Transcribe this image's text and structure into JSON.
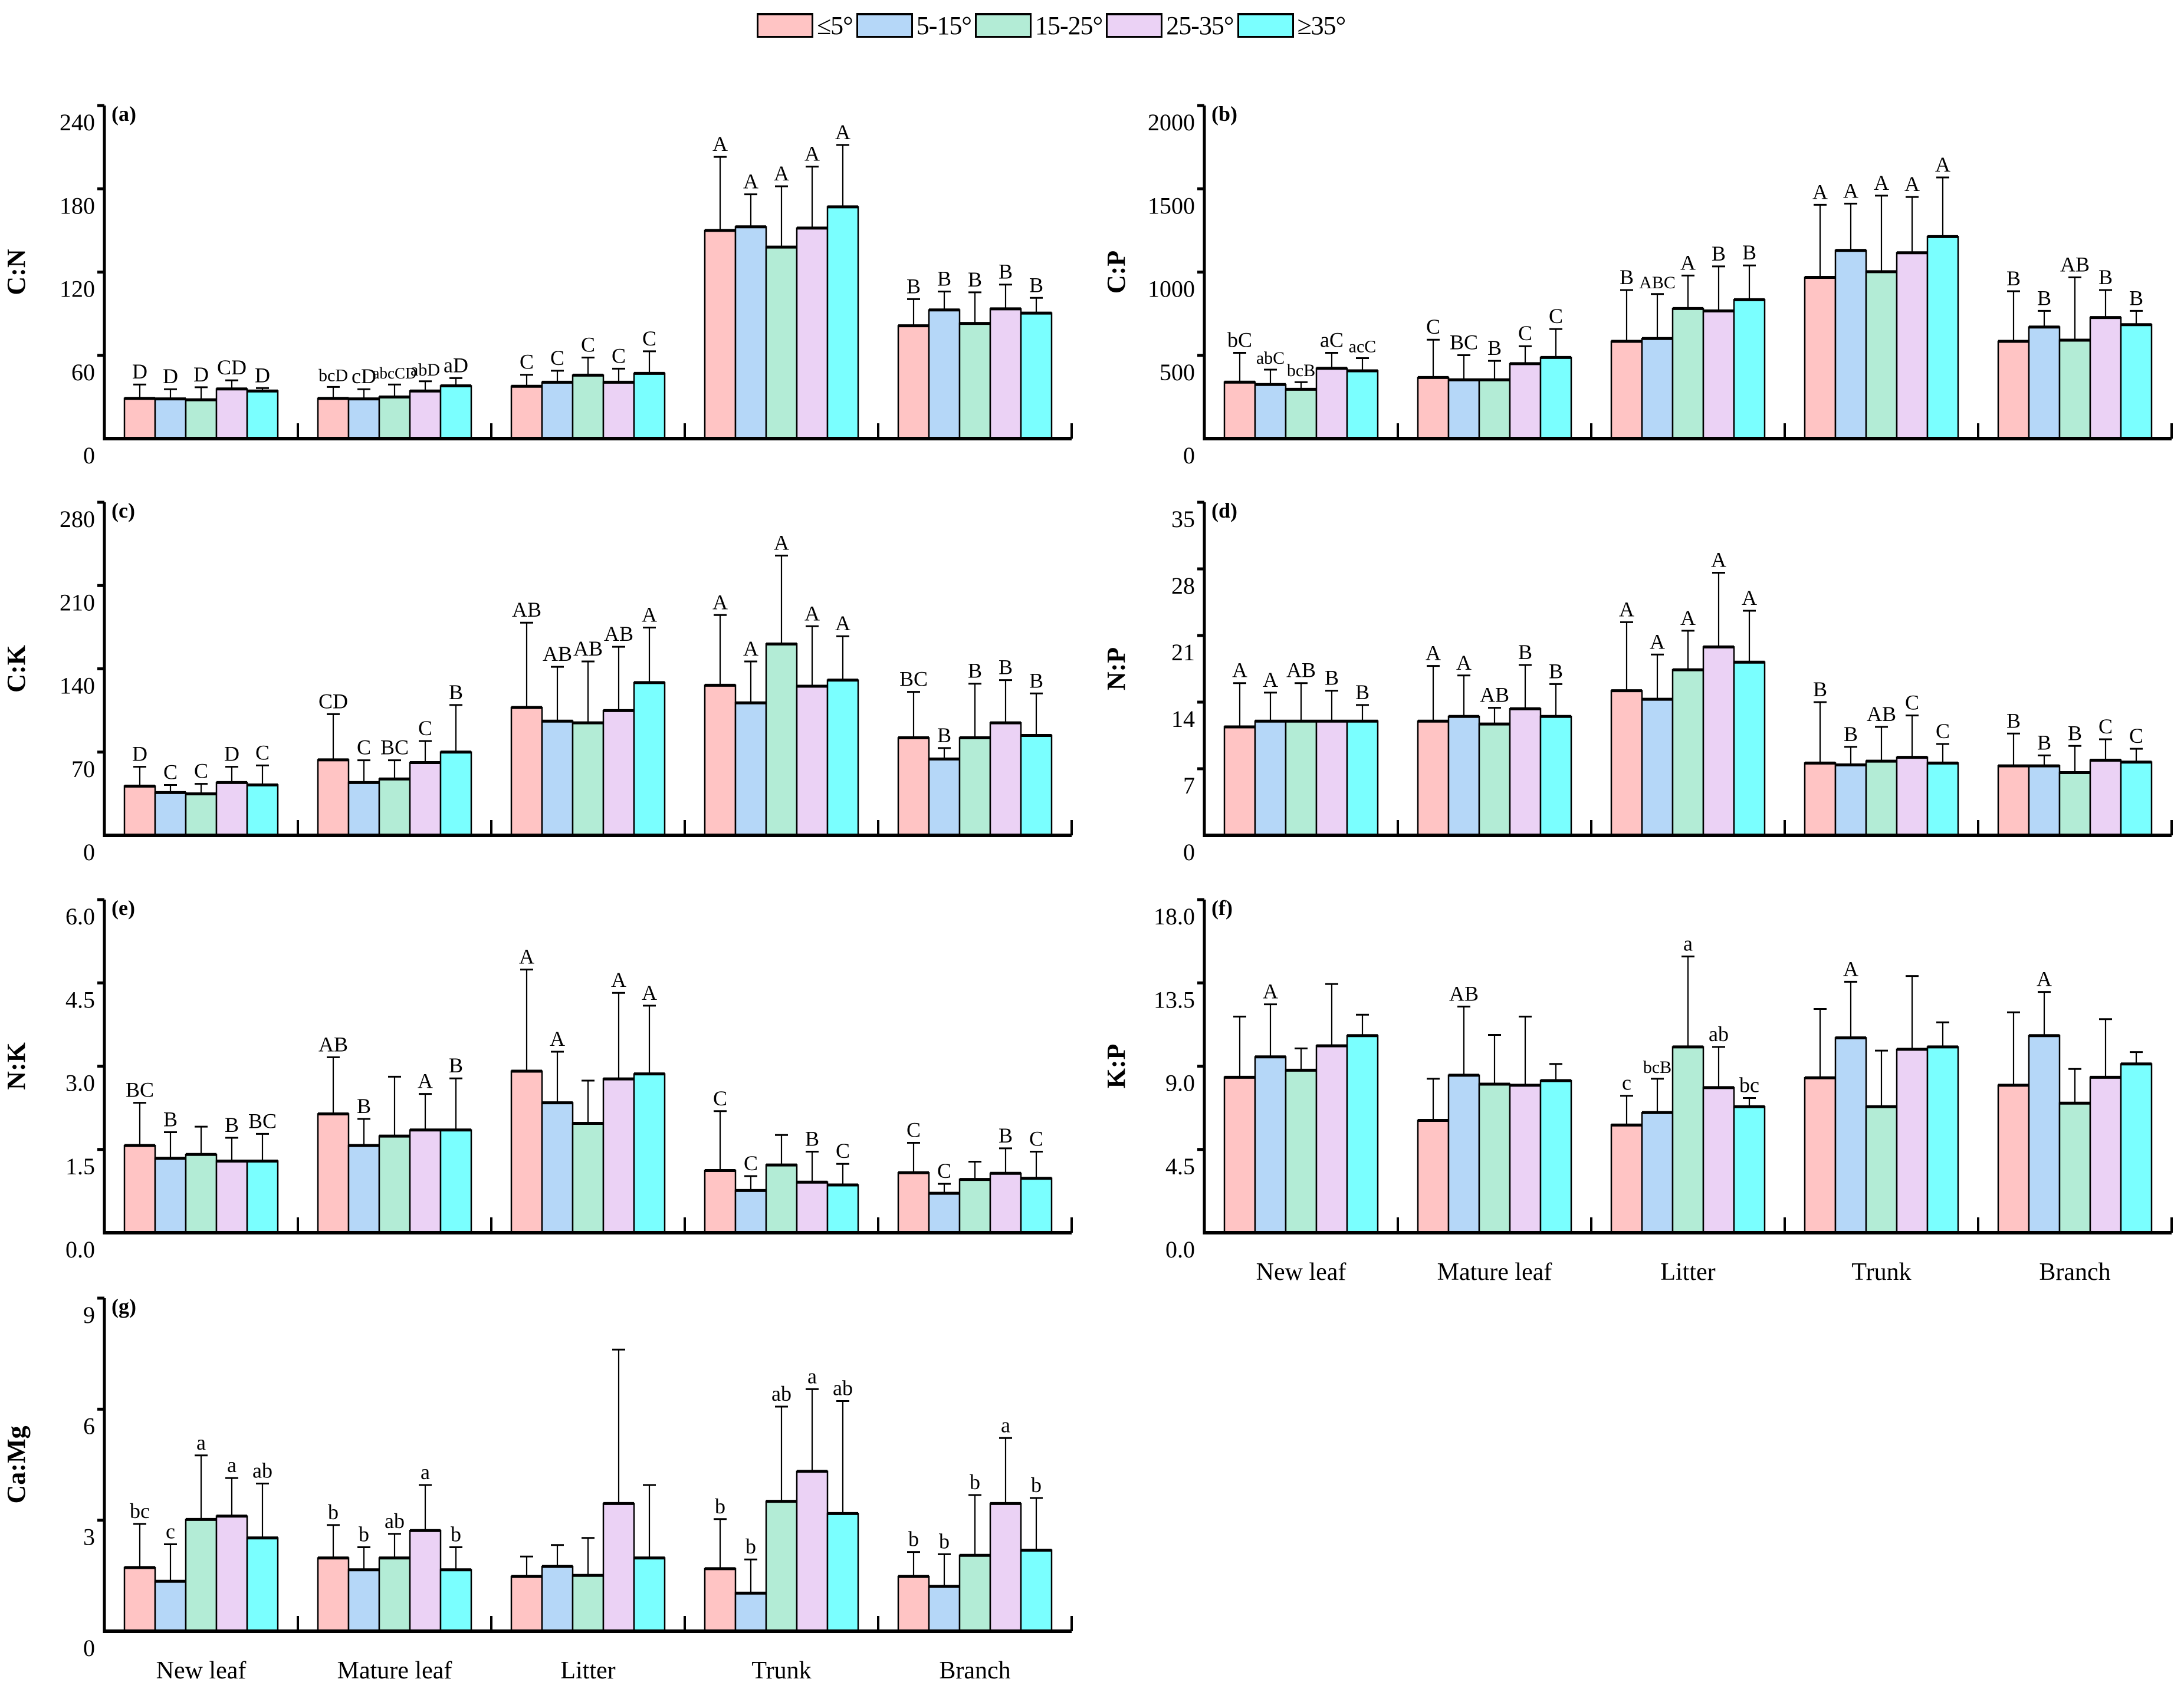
{
  "legend": [
    {
      "label": "≤5°",
      "color": "#FFC4C4"
    },
    {
      "label": "5-15°",
      "color": "#B5D7F8"
    },
    {
      "label": "15-25°",
      "color": "#B3ECD6"
    },
    {
      "label": "25-35°",
      "color": "#EBD2F5"
    },
    {
      "label": "≥35°",
      "color": "#7AFFFF"
    }
  ],
  "categories": [
    "New leaf",
    "Mature leaf",
    "Litter",
    "Trunk",
    "Branch"
  ],
  "chart_data": [
    {
      "type": "bar",
      "panel": "(a)",
      "ylabel": "C:N",
      "ylim": [
        0,
        240
      ],
      "yticks": [
        "0",
        "60",
        "120",
        "180",
        "240"
      ],
      "series": [
        {
          "name": "≤5°",
          "values": [
            29,
            29,
            37.7,
            150,
            81.3
          ],
          "error_upper": [
            39,
            37.2,
            46,
            203,
            100.5
          ],
          "letters": [
            "D",
            "bcD",
            "C",
            "A",
            "B"
          ]
        },
        {
          "name": "5-15°",
          "values": [
            28.6,
            28.6,
            40.6,
            152.6,
            92.7
          ],
          "error_upper": [
            35.6,
            35.6,
            48.9,
            176,
            106
          ],
          "letters": [
            "D",
            "cD",
            "C",
            "A",
            "B"
          ]
        },
        {
          "name": "15-25°",
          "values": [
            28,
            30,
            45.7,
            138,
            83
          ],
          "error_upper": [
            37,
            39,
            58.4,
            181.8,
            105.4
          ],
          "letters": [
            "D",
            "abcCD",
            "C",
            "A",
            "B"
          ]
        },
        {
          "name": "25-35°",
          "values": [
            35.8,
            34.3,
            40.6,
            151.7,
            93.5
          ],
          "error_upper": [
            42,
            41.3,
            50.4,
            196,
            111
          ],
          "letters": [
            "CD",
            "abD",
            "C",
            "A",
            "B"
          ]
        },
        {
          "name": "≥35°",
          "values": [
            34.3,
            38,
            47,
            167,
            90.4
          ],
          "error_upper": [
            36.4,
            43.6,
            62.9,
            211.6,
            101.4
          ],
          "letters": [
            "D",
            "aD",
            "C",
            "A",
            "B"
          ]
        }
      ]
    },
    {
      "type": "bar",
      "panel": "(b)",
      "ylabel": "C:P",
      "ylim": [
        0,
        2000
      ],
      "yticks": [
        "0",
        "500",
        "1000",
        "1500",
        "2000"
      ],
      "series": [
        {
          "name": "≤5°",
          "values": [
            339,
            367,
            584,
            968,
            584
          ],
          "error_upper": [
            515,
            594,
            892,
            1404,
            885
          ],
          "letters": [
            "bC",
            "C",
            "B",
            "A",
            "B"
          ]
        },
        {
          "name": "5-15°",
          "values": [
            325,
            353,
            601,
            1130,
            670
          ],
          "error_upper": [
            414,
            501,
            868,
            1411,
            767
          ],
          "letters": [
            "abC",
            "BC",
            "ABC",
            "A",
            "B"
          ]
        },
        {
          "name": "15-25°",
          "values": [
            296,
            353,
            781,
            1002,
            591
          ],
          "error_upper": [
            339,
            467,
            979,
            1459,
            968
          ],
          "letters": [
            "bcB",
            "B",
            "A",
            "A",
            "AB"
          ]
        },
        {
          "name": "25-35°",
          "values": [
            422,
            450,
            767,
            1116,
            727
          ],
          "error_upper": [
            515,
            555,
            1034,
            1451,
            892
          ],
          "letters": [
            "aC",
            "C",
            "B",
            "A",
            "B"
          ]
        },
        {
          "name": "≥35°",
          "values": [
            407,
            487,
            834,
            1213,
            684
          ],
          "error_upper": [
            483,
            658,
            1040,
            1568,
            767
          ],
          "letters": [
            "acC",
            "C",
            "B",
            "A",
            "B"
          ]
        }
      ]
    },
    {
      "type": "bar",
      "panel": "(c)",
      "ylabel": "C:K",
      "ylim": [
        0,
        280
      ],
      "yticks": [
        "0",
        "70",
        "140",
        "210",
        "280"
      ],
      "series": [
        {
          "name": "≤5°",
          "values": [
            41.4,
            63.5,
            107.5,
            126.2,
            82
          ],
          "error_upper": [
            57.7,
            101.9,
            178.8,
            185.2,
            120.6
          ],
          "letters": [
            "D",
            "CD",
            "AB",
            "A",
            "BC"
          ]
        },
        {
          "name": "5-15°",
          "values": [
            36,
            44.4,
            96,
            111.4,
            64.2
          ],
          "error_upper": [
            42.4,
            63.1,
            141.7,
            146.2,
            73.4
          ],
          "letters": [
            "C",
            "C",
            "AB",
            "A",
            "B"
          ]
        },
        {
          "name": "15-25°",
          "values": [
            34.9,
            47.4,
            94.6,
            160.9,
            82
          ],
          "error_upper": [
            43.3,
            63.1,
            146.2,
            235.2,
            127.5
          ],
          "letters": [
            "C",
            "BC",
            "AB",
            "A",
            "B"
          ]
        },
        {
          "name": "25-35°",
          "values": [
            44.4,
            61.2,
            104.9,
            125.4,
            94.6
          ],
          "error_upper": [
            57.7,
            79.3,
            158.5,
            175.8,
            130.5
          ],
          "letters": [
            "D",
            "C",
            "AB",
            "A",
            "B"
          ]
        },
        {
          "name": "≥35°",
          "values": [
            42.4,
            70,
            128.4,
            130.5,
            84
          ],
          "error_upper": [
            58.8,
            109.6,
            174.7,
            167.4,
            119.3
          ],
          "letters": [
            "C",
            "B",
            "A",
            "A",
            "B"
          ]
        }
      ]
    },
    {
      "type": "bar",
      "panel": "(d)",
      "ylabel": "N:P",
      "ylim": [
        0,
        35
      ],
      "yticks": [
        "0",
        "7",
        "14",
        "21",
        "28",
        "35"
      ],
      "series": [
        {
          "name": "≤5°",
          "values": [
            11.4,
            12.0,
            15.2,
            7.6,
            7.3
          ],
          "error_upper": [
            16.0,
            17.8,
            22.4,
            14.0,
            10.7
          ],
          "letters": [
            "A",
            "A",
            "A",
            "B",
            "B"
          ]
        },
        {
          "name": "5-15°",
          "values": [
            12.0,
            12.5,
            14.3,
            7.4,
            7.3
          ],
          "error_upper": [
            15.0,
            16.8,
            19.0,
            9.3,
            8.4
          ],
          "letters": [
            "A",
            "A",
            "A",
            "B",
            "B"
          ]
        },
        {
          "name": "15-25°",
          "values": [
            12.0,
            11.7,
            17.4,
            7.8,
            6.6
          ],
          "error_upper": [
            16.0,
            13.4,
            21.5,
            11.4,
            9.4
          ],
          "letters": [
            "AB",
            "AB",
            "A",
            "AB",
            "B"
          ]
        },
        {
          "name": "25-35°",
          "values": [
            12.0,
            13.3,
            19.8,
            8.2,
            7.9
          ],
          "error_upper": [
            15.2,
            17.9,
            27.6,
            12.6,
            10.1
          ],
          "letters": [
            "B",
            "B",
            "A",
            "C",
            "C"
          ]
        },
        {
          "name": "≥35°",
          "values": [
            12.0,
            12.5,
            18.2,
            7.6,
            7.7
          ],
          "error_upper": [
            13.7,
            15.9,
            23.6,
            9.6,
            9.1
          ],
          "letters": [
            "B",
            "B",
            "A",
            "C",
            "C"
          ]
        }
      ]
    },
    {
      "type": "bar",
      "panel": "(e)",
      "ylabel": "N:K",
      "ylim": [
        0,
        6
      ],
      "yticks": [
        "0.0",
        "1.5",
        "3.0",
        "4.5",
        "6.0"
      ],
      "series": [
        {
          "name": "≤5°",
          "values": [
            1.57,
            2.14,
            2.91,
            1.12,
            1.08
          ],
          "error_upper": [
            2.34,
            3.16,
            4.74,
            2.19,
            1.62
          ],
          "letters": [
            "BC",
            "AB",
            "A",
            "C",
            "C"
          ]
        },
        {
          "name": "5-15°",
          "values": [
            1.34,
            1.57,
            2.34,
            0.76,
            0.71
          ],
          "error_upper": [
            1.81,
            2.05,
            3.26,
            1.02,
            0.88
          ],
          "letters": [
            "B",
            "B",
            "A",
            "C",
            "C"
          ]
        },
        {
          "name": "15-25°",
          "values": [
            1.41,
            1.74,
            1.97,
            1.22,
            0.96
          ],
          "error_upper": [
            1.91,
            2.81,
            2.74,
            1.76,
            1.28
          ],
          "letters": [
            "",
            "",
            "",
            "",
            ""
          ]
        },
        {
          "name": "25-35°",
          "values": [
            1.29,
            1.85,
            2.77,
            0.91,
            1.07
          ],
          "error_upper": [
            1.71,
            2.5,
            4.32,
            1.46,
            1.52
          ],
          "letters": [
            "B",
            "A",
            "A",
            "B",
            "B"
          ]
        },
        {
          "name": "≥35°",
          "values": [
            1.29,
            1.85,
            2.86,
            0.86,
            0.98
          ],
          "error_upper": [
            1.78,
            2.78,
            4.09,
            1.24,
            1.46
          ],
          "letters": [
            "BC",
            "B",
            "A",
            "C",
            "C"
          ]
        }
      ]
    },
    {
      "type": "bar",
      "panel": "(f)",
      "ylabel": "K:P",
      "ylim": [
        0,
        18
      ],
      "yticks": [
        "0.0",
        "4.5",
        "9.0",
        "13.5",
        "18.0"
      ],
      "show_categories": true,
      "series": [
        {
          "name": "≤5°",
          "values": [
            8.4,
            6.07,
            5.82,
            8.37,
            7.97
          ],
          "error_upper": [
            11.68,
            8.32,
            7.4,
            12.09,
            11.91
          ],
          "letters": [
            "",
            "",
            "c",
            "",
            ""
          ]
        },
        {
          "name": "5-15°",
          "values": [
            9.5,
            8.51,
            6.49,
            10.53,
            10.65
          ],
          "error_upper": [
            12.34,
            12.22,
            8.32,
            13.56,
            13.01
          ],
          "letters": [
            "A",
            "AB",
            "bcB",
            "A",
            "A"
          ]
        },
        {
          "name": "15-25°",
          "values": [
            8.78,
            8.03,
            10.04,
            6.81,
            7.0
          ],
          "error_upper": [
            9.96,
            10.69,
            14.93,
            9.84,
            8.85
          ],
          "letters": [
            "",
            "",
            "a",
            "",
            ""
          ]
        },
        {
          "name": "25-35°",
          "values": [
            10.1,
            7.97,
            7.84,
            9.91,
            8.4
          ],
          "error_upper": [
            13.44,
            11.68,
            10.04,
            13.87,
            11.54
          ],
          "letters": [
            "",
            "",
            "ab",
            "",
            ""
          ]
        },
        {
          "name": "≥35°",
          "values": [
            10.65,
            8.22,
            6.81,
            10.04,
            9.12
          ],
          "error_upper": [
            11.78,
            9.12,
            7.28,
            11.37,
            9.76
          ],
          "letters": [
            "",
            "",
            "bc",
            "",
            ""
          ]
        }
      ]
    },
    {
      "type": "bar",
      "panel": "(g)",
      "ylabel": "Ca:Mg",
      "ylim": [
        0,
        9
      ],
      "yticks": [
        "0",
        "3",
        "6",
        "9"
      ],
      "show_categories": true,
      "series": [
        {
          "name": "≤5°",
          "values": [
            1.72,
            1.98,
            1.48,
            1.69,
            1.48
          ],
          "error_upper": [
            2.9,
            2.87,
            2.02,
            3.03,
            2.14
          ],
          "letters": [
            "bc",
            "b",
            "",
            "b",
            "b"
          ]
        },
        {
          "name": "5-15°",
          "values": [
            1.35,
            1.66,
            1.75,
            1.03,
            1.21
          ],
          "error_upper": [
            2.35,
            2.27,
            2.33,
            1.94,
            2.08
          ],
          "letters": [
            "c",
            "b",
            "",
            "b",
            "b"
          ]
        },
        {
          "name": "15-25°",
          "values": [
            3.02,
            1.98,
            1.51,
            3.51,
            2.05
          ],
          "error_upper": [
            4.75,
            2.63,
            2.52,
            6.07,
            3.68
          ],
          "letters": [
            "a",
            "ab",
            "",
            "ab",
            "b"
          ]
        },
        {
          "name": "25-35°",
          "values": [
            3.11,
            2.72,
            3.45,
            4.32,
            3.45
          ],
          "error_upper": [
            4.14,
            3.95,
            7.61,
            6.54,
            5.22
          ],
          "letters": [
            "a",
            "a",
            "",
            "a",
            "a"
          ]
        },
        {
          "name": "≥35°",
          "values": [
            2.52,
            1.66,
            1.98,
            3.18,
            2.19
          ],
          "error_upper": [
            3.99,
            2.27,
            3.95,
            6.22,
            3.6
          ],
          "letters": [
            "ab",
            "b",
            "",
            "ab",
            "b"
          ]
        }
      ]
    }
  ]
}
